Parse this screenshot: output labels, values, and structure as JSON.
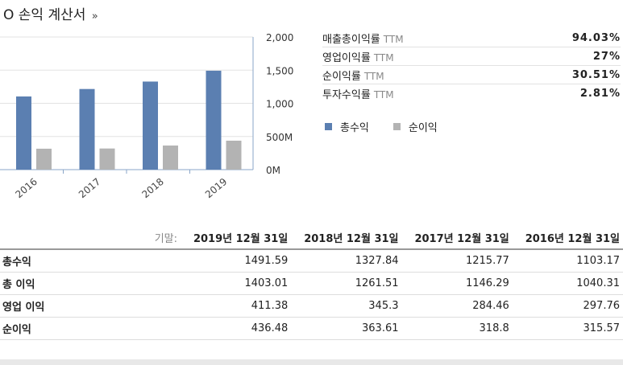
{
  "title": "O 손익 계산서",
  "title_arrow": "»",
  "ratios": [
    {
      "label": "매출총이익률",
      "ttm": "TTM",
      "value": "94.03%"
    },
    {
      "label": "영업이익률",
      "ttm": "TTM",
      "value": "27%"
    },
    {
      "label": "순이익률",
      "ttm": "TTM",
      "value": "30.51%"
    },
    {
      "label": "투자수익률",
      "ttm": "TTM",
      "value": "2.81%"
    }
  ],
  "chart_data": {
    "type": "bar",
    "categories": [
      "2016",
      "2017",
      "2018",
      "2019"
    ],
    "series": [
      {
        "name": "총수익",
        "color": "#5b7fb1",
        "values": [
          1103.17,
          1215.77,
          1327.84,
          1491.59
        ]
      },
      {
        "name": "순이익",
        "color": "#b3b3b3",
        "values": [
          315.57,
          318.8,
          363.61,
          436.48
        ]
      }
    ],
    "y_ticks": [
      "2,000",
      "1,500",
      "1,000",
      "500M",
      "0M"
    ],
    "y_tick_values": [
      2000,
      1500,
      1000,
      500,
      0
    ],
    "ylim": [
      0,
      2000
    ],
    "grid": true,
    "legend_position": "right"
  },
  "table": {
    "lead": "기말:",
    "columns": [
      "2019년 12월 31일",
      "2018년 12월 31일",
      "2017년 12월 31일",
      "2016년 12월 31일"
    ],
    "rows": [
      {
        "label": "총수익",
        "values": [
          "1491.59",
          "1327.84",
          "1215.77",
          "1103.17"
        ]
      },
      {
        "label": "총 이익",
        "values": [
          "1403.01",
          "1261.51",
          "1146.29",
          "1040.31"
        ]
      },
      {
        "label": "영업 이익",
        "values": [
          "411.38",
          "345.3",
          "284.46",
          "297.76"
        ]
      },
      {
        "label": "순이익",
        "values": [
          "436.48",
          "363.61",
          "318.8",
          "315.57"
        ]
      }
    ]
  }
}
